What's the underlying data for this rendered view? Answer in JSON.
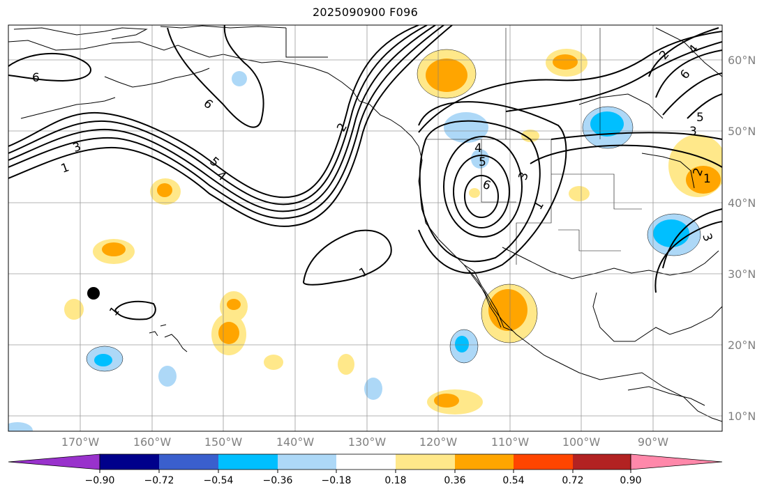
{
  "title": "2025090900 F096",
  "longitude_labels": [
    "170°W",
    "160°W",
    "150°W",
    "140°W",
    "130°W",
    "120°W",
    "110°W",
    "100°W",
    "90°W"
  ],
  "latitude_labels": [
    "60°N",
    "50°N",
    "40°N",
    "30°N",
    "20°N",
    "10°N"
  ],
  "contour_labels": [
    "6",
    "6",
    "3",
    "1",
    "5",
    "4",
    "2",
    "1",
    "4",
    "5",
    "6",
    "3",
    "1",
    "1",
    "1",
    "2",
    "4",
    "6",
    "5",
    "3",
    "2",
    "3"
  ],
  "colorbar": {
    "tick_labels": [
      "−0.90",
      "−0.72",
      "−0.54",
      "−0.36",
      "−0.18",
      "0.18",
      "0.36",
      "0.54",
      "0.72",
      "0.90"
    ],
    "colors": [
      "#9932cc",
      "#00008b",
      "#3a5fcd",
      "#00bfff",
      "#add8f7",
      "#ffffff",
      "#ffe88a",
      "#ffa500",
      "#ff4500",
      "#b22222",
      "#ff88aa"
    ]
  }
}
